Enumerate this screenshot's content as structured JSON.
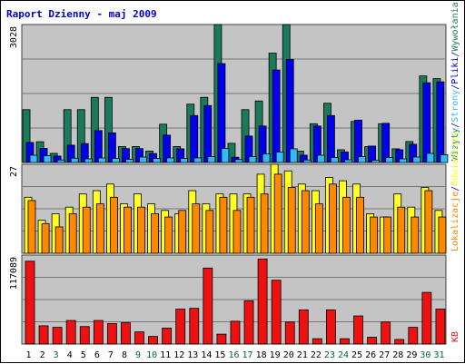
{
  "chart_data": {
    "type": "bar",
    "title": "Raport Dzienny -  maj 2009",
    "categories": [
      "1",
      "2",
      "3",
      "4",
      "5",
      "6",
      "7",
      "8",
      "9",
      "10",
      "11",
      "12",
      "13",
      "14",
      "15",
      "16",
      "17",
      "18",
      "19",
      "20",
      "21",
      "22",
      "23",
      "24",
      "25",
      "26",
      "27",
      "28",
      "29",
      "30",
      "31"
    ],
    "weekend_days": [
      "3",
      "9",
      "10",
      "16",
      "17",
      "23",
      "24",
      "30",
      "31"
    ],
    "colors": {
      "text": "#0000cc",
      "weekend_text": "#006633",
      "grid": "#777777",
      "plot_bg": "#c4c4c4",
      "page_bg": "#ffffff",
      "wizyty": "#1c7a5c",
      "strony": "#0000ee",
      "pliki": "#33bbff",
      "wizyty_label": "#008888",
      "odwiedziny": "#ffff22",
      "lokalizacje": "#ff8800",
      "kb": "#ee1111"
    },
    "panels": [
      {
        "ymax_label": "3028",
        "ylim": [
          0,
          3028
        ],
        "grid": true,
        "legend_labels": [
          {
            "text": "Wizyty",
            "color": "wizyty_label"
          },
          {
            "text": "/",
            "color": "text"
          },
          {
            "text": "Strony",
            "color": "pliki"
          },
          {
            "text": "/",
            "color": "text"
          },
          {
            "text": "Pliki",
            "color": "strony"
          },
          {
            "text": "/",
            "color": "text"
          },
          {
            "text": "Wywołania",
            "color": "wizyty"
          }
        ],
        "series": [
          {
            "name": "Wywołania",
            "color": "wizyty",
            "values": [
              1160,
              455,
              200,
              1160,
              1160,
              1430,
              1430,
              350,
              350,
              250,
              840,
              350,
              1280,
              1430,
              3028,
              420,
              1160,
              1350,
              2400,
              3028,
              250,
              850,
              1300,
              280,
              900,
              350,
              850,
              300,
              460,
              1900,
              1840
            ]
          },
          {
            "name": "Pliki",
            "color": "strony",
            "values": [
              440,
              310,
              140,
              380,
              415,
              700,
              650,
              305,
              305,
              195,
              600,
              300,
              1030,
              1250,
              2170,
              115,
              580,
              800,
              2030,
              2260,
              160,
              800,
              1030,
              230,
              930,
              360,
              860,
              280,
              400,
              1750,
              1770
            ]
          },
          {
            "name": "Strony",
            "color": "pliki",
            "values": [
              160,
              150,
              55,
              95,
              80,
              100,
              90,
              70,
              120,
              90,
              100,
              90,
              100,
              130,
              310,
              65,
              130,
              190,
              230,
              300,
              55,
              160,
              110,
              60,
              130,
              50,
              110,
              80,
              120,
              200,
              170
            ]
          }
        ]
      },
      {
        "ymax_label": "27",
        "ylim": [
          0,
          27
        ],
        "grid": true,
        "legend_labels": [
          {
            "text": "Lokalizacje",
            "color": "lokalizacje"
          },
          {
            "text": "/",
            "color": "text"
          },
          {
            "text": "Odwiedziny",
            "color": "odwiedziny"
          }
        ],
        "series": [
          {
            "name": "Odwiedziny",
            "color": "odwiedziny",
            "values": [
              17,
              10,
              12,
              14,
              18,
              19,
              21,
              15,
              18,
              15,
              13,
              12,
              19,
              15,
              18,
              18,
              18,
              24,
              27,
              25,
              21,
              19,
              23,
              22,
              21,
              12,
              11,
              18,
              14,
              20,
              13
            ]
          },
          {
            "name": "Lokalizacje",
            "color": "lokalizacje",
            "values": [
              16,
              9,
              8,
              12,
              14,
              15,
              17,
              14,
              14,
              12,
              11,
              13,
              15,
              13,
              17,
              13,
              17,
              18,
              24,
              20,
              19,
              15,
              21,
              17,
              17,
              11,
              11,
              14,
              11,
              19,
              11
            ]
          }
        ]
      },
      {
        "ymax_label": "117089",
        "ylim": [
          0,
          117089
        ],
        "grid": true,
        "legend_labels": [
          {
            "text": "KB",
            "color": "kb"
          }
        ],
        "series": [
          {
            "name": "KB",
            "color": "kb",
            "values": [
              109000,
              24000,
              22000,
              31000,
              23000,
              31000,
              27000,
              28000,
              16000,
              10000,
              21000,
              46000,
              47000,
              100000,
              13000,
              30000,
              57000,
              112000,
              84000,
              29000,
              45000,
              7000,
              45000,
              7000,
              37000,
              9000,
              29000,
              6000,
              22000,
              68000,
              46000
            ]
          }
        ]
      }
    ]
  }
}
